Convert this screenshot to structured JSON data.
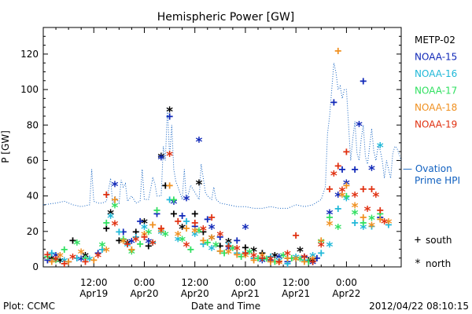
{
  "chart_data": {
    "type": "scatter",
    "title": "Hemispheric Power [GW]",
    "xlabel": "Date and Time",
    "ylabel": "P [GW]",
    "ylim": [
      0,
      135
    ],
    "yticks": [
      0,
      20,
      40,
      60,
      80,
      100,
      120
    ],
    "xlim_hours": [
      0,
      85
    ],
    "xticks": [
      {
        "hour": 12,
        "line1": "12:00",
        "line2": "Apr19"
      },
      {
        "hour": 24,
        "line1": "0:00",
        "line2": "Apr20"
      },
      {
        "hour": 36,
        "line1": "12:00",
        "line2": "Apr20"
      },
      {
        "hour": 48,
        "line1": "0:00",
        "line2": "Apr21"
      },
      {
        "hour": 60,
        "line1": "12:00",
        "line2": "Apr21"
      },
      {
        "hour": 72,
        "line1": "0:00",
        "line2": "Apr22"
      }
    ],
    "legend_placement": "right",
    "series": [
      {
        "name": "METP-02",
        "color": "#000000",
        "points": [
          [
            2,
            5
          ],
          [
            4,
            3
          ],
          [
            7,
            15
          ],
          [
            10,
            6
          ],
          [
            15,
            22
          ],
          [
            16,
            30
          ],
          [
            18,
            15
          ],
          [
            20,
            13
          ],
          [
            22,
            20
          ],
          [
            24,
            25
          ],
          [
            25,
            12
          ],
          [
            28,
            62
          ],
          [
            29,
            46
          ],
          [
            30,
            88
          ],
          [
            31,
            30
          ],
          [
            33,
            22
          ],
          [
            36,
            30
          ],
          [
            37,
            47
          ],
          [
            38,
            20
          ],
          [
            40,
            16
          ],
          [
            42,
            12
          ],
          [
            44,
            14
          ],
          [
            48,
            11
          ],
          [
            50,
            9
          ],
          [
            52,
            8
          ],
          [
            55,
            6
          ],
          [
            58,
            5
          ],
          [
            61,
            9
          ],
          [
            63,
            4
          ],
          [
            64,
            3
          ]
        ]
      },
      {
        "name": "NOAA-15",
        "color": "#1028b8",
        "points": [
          [
            1,
            4
          ],
          [
            3,
            6
          ],
          [
            6,
            3
          ],
          [
            9,
            4
          ],
          [
            13,
            8
          ],
          [
            17,
            46
          ],
          [
            19,
            20
          ],
          [
            21,
            14
          ],
          [
            23,
            26
          ],
          [
            25,
            14
          ],
          [
            27,
            30
          ],
          [
            28,
            61
          ],
          [
            30,
            85
          ],
          [
            31,
            36
          ],
          [
            33,
            29
          ],
          [
            34,
            38
          ],
          [
            36,
            23
          ],
          [
            37,
            71
          ],
          [
            39,
            27
          ],
          [
            40,
            22
          ],
          [
            42,
            17
          ],
          [
            44,
            10
          ],
          [
            46,
            15
          ],
          [
            48,
            22
          ],
          [
            50,
            5
          ],
          [
            52,
            3
          ],
          [
            54,
            4
          ],
          [
            56,
            5
          ],
          [
            58,
            3
          ],
          [
            60,
            4
          ],
          [
            62,
            6
          ],
          [
            64,
            2
          ],
          [
            65,
            5
          ],
          [
            68,
            30
          ],
          [
            69,
            93
          ],
          [
            70,
            40
          ],
          [
            71,
            55
          ],
          [
            72,
            47
          ],
          [
            74,
            55
          ],
          [
            75,
            80
          ],
          [
            76,
            105
          ],
          [
            78,
            55
          ],
          [
            80,
            28
          ]
        ]
      },
      {
        "name": "NOAA-16",
        "color": "#20b8d8",
        "points": [
          [
            2,
            8
          ],
          [
            5,
            3
          ],
          [
            8,
            5
          ],
          [
            11,
            4
          ],
          [
            14,
            10
          ],
          [
            16,
            28
          ],
          [
            18,
            20
          ],
          [
            20,
            12
          ],
          [
            22,
            17
          ],
          [
            24,
            22
          ],
          [
            26,
            14
          ],
          [
            28,
            19
          ],
          [
            30,
            38
          ],
          [
            32,
            15
          ],
          [
            34,
            26
          ],
          [
            36,
            18
          ],
          [
            38,
            13
          ],
          [
            40,
            10
          ],
          [
            42,
            9
          ],
          [
            44,
            12
          ],
          [
            46,
            8
          ],
          [
            48,
            7
          ],
          [
            50,
            5
          ],
          [
            52,
            4
          ],
          [
            54,
            6
          ],
          [
            56,
            3
          ],
          [
            58,
            2
          ],
          [
            60,
            5
          ],
          [
            62,
            4
          ],
          [
            64,
            6
          ],
          [
            66,
            8
          ],
          [
            68,
            12
          ],
          [
            70,
            33
          ],
          [
            72,
            38
          ],
          [
            74,
            25
          ],
          [
            76,
            22
          ],
          [
            78,
            23
          ],
          [
            80,
            68
          ],
          [
            82,
            24
          ]
        ]
      },
      {
        "name": "NOAA-17",
        "color": "#30e060",
        "points": [
          [
            1,
            6
          ],
          [
            3,
            3
          ],
          [
            5,
            10
          ],
          [
            8,
            13
          ],
          [
            10,
            5
          ],
          [
            14,
            12
          ],
          [
            15,
            25
          ],
          [
            17,
            34
          ],
          [
            19,
            16
          ],
          [
            21,
            8
          ],
          [
            23,
            13
          ],
          [
            25,
            19
          ],
          [
            27,
            32
          ],
          [
            29,
            18
          ],
          [
            31,
            38
          ],
          [
            33,
            15
          ],
          [
            35,
            10
          ],
          [
            37,
            20
          ],
          [
            39,
            14
          ],
          [
            41,
            12
          ],
          [
            43,
            8
          ],
          [
            45,
            10
          ],
          [
            47,
            6
          ],
          [
            49,
            8
          ],
          [
            51,
            5
          ],
          [
            53,
            4
          ],
          [
            55,
            3
          ],
          [
            57,
            6
          ],
          [
            59,
            5
          ],
          [
            61,
            4
          ],
          [
            63,
            3
          ],
          [
            66,
            14
          ],
          [
            68,
            28
          ],
          [
            70,
            22
          ],
          [
            72,
            40
          ],
          [
            74,
            30
          ],
          [
            76,
            25
          ],
          [
            78,
            27
          ],
          [
            80,
            30
          ]
        ]
      },
      {
        "name": "NOAA-18",
        "color": "#f09020",
        "points": [
          [
            2,
            3
          ],
          [
            4,
            6
          ],
          [
            6,
            3
          ],
          [
            9,
            8
          ],
          [
            12,
            4
          ],
          [
            15,
            9
          ],
          [
            17,
            38
          ],
          [
            19,
            14
          ],
          [
            21,
            10
          ],
          [
            24,
            18
          ],
          [
            26,
            24
          ],
          [
            28,
            20
          ],
          [
            30,
            46
          ],
          [
            32,
            18
          ],
          [
            34,
            22
          ],
          [
            36,
            20
          ],
          [
            38,
            15
          ],
          [
            40,
            16
          ],
          [
            42,
            9
          ],
          [
            44,
            8
          ],
          [
            46,
            7
          ],
          [
            48,
            6
          ],
          [
            50,
            4
          ],
          [
            52,
            6
          ],
          [
            54,
            3
          ],
          [
            56,
            2
          ],
          [
            58,
            5
          ],
          [
            60,
            4
          ],
          [
            62,
            3
          ],
          [
            64,
            4
          ],
          [
            66,
            15
          ],
          [
            68,
            24
          ],
          [
            70,
            122
          ],
          [
            71,
            40
          ],
          [
            72,
            46
          ],
          [
            74,
            34
          ],
          [
            76,
            28
          ],
          [
            78,
            23
          ],
          [
            80,
            27
          ],
          [
            82,
            25
          ]
        ]
      },
      {
        "name": "NOAA-19",
        "color": "#e03010",
        "points": [
          [
            1,
            7
          ],
          [
            3,
            4
          ],
          [
            5,
            2
          ],
          [
            7,
            5
          ],
          [
            10,
            3
          ],
          [
            13,
            6
          ],
          [
            15,
            41
          ],
          [
            17,
            24
          ],
          [
            20,
            13
          ],
          [
            22,
            15
          ],
          [
            24,
            17
          ],
          [
            26,
            13
          ],
          [
            28,
            22
          ],
          [
            30,
            63
          ],
          [
            32,
            26
          ],
          [
            34,
            12
          ],
          [
            36,
            25
          ],
          [
            38,
            21
          ],
          [
            40,
            28
          ],
          [
            42,
            18
          ],
          [
            44,
            12
          ],
          [
            46,
            10
          ],
          [
            48,
            8
          ],
          [
            50,
            6
          ],
          [
            52,
            5
          ],
          [
            54,
            4
          ],
          [
            56,
            3
          ],
          [
            58,
            7
          ],
          [
            60,
            18
          ],
          [
            62,
            5
          ],
          [
            64,
            3
          ],
          [
            66,
            12
          ],
          [
            68,
            44
          ],
          [
            69,
            52
          ],
          [
            70,
            57
          ],
          [
            71,
            43
          ],
          [
            72,
            65
          ],
          [
            74,
            40
          ],
          [
            76,
            44
          ],
          [
            77,
            32
          ],
          [
            78,
            44
          ],
          [
            79,
            40
          ],
          [
            80,
            32
          ],
          [
            81,
            25
          ]
        ]
      }
    ],
    "ovation": {
      "label_line1": "— Ovation",
      "label_line2": "Prime HPI",
      "color": "#1060c0",
      "points": [
        [
          0,
          35
        ],
        [
          3,
          36
        ],
        [
          5,
          37
        ],
        [
          7,
          35
        ],
        [
          9,
          34
        ],
        [
          11,
          35
        ],
        [
          11.5,
          55
        ],
        [
          12,
          37
        ],
        [
          13,
          36
        ],
        [
          14,
          36
        ],
        [
          15,
          37
        ],
        [
          16,
          50
        ],
        [
          16.5,
          35
        ],
        [
          17,
          40
        ],
        [
          18,
          36
        ],
        [
          18.5,
          49
        ],
        [
          19,
          45
        ],
        [
          19.5,
          47
        ],
        [
          20,
          37
        ],
        [
          21,
          40
        ],
        [
          22,
          36
        ],
        [
          23,
          37
        ],
        [
          23.5,
          55
        ],
        [
          24,
          38
        ],
        [
          25,
          38
        ],
        [
          26,
          50
        ],
        [
          26.5,
          47
        ],
        [
          27,
          40
        ],
        [
          28,
          40
        ],
        [
          28.5,
          68
        ],
        [
          29,
          60
        ],
        [
          29.5,
          90
        ],
        [
          30,
          62
        ],
        [
          30.5,
          80
        ],
        [
          31,
          55
        ],
        [
          31.5,
          48
        ],
        [
          32,
          45
        ],
        [
          33,
          38
        ],
        [
          33.5,
          55
        ],
        [
          34,
          37
        ],
        [
          35,
          46
        ],
        [
          36,
          42
        ],
        [
          37,
          38
        ],
        [
          37.5,
          58
        ],
        [
          38,
          50
        ],
        [
          38.5,
          42
        ],
        [
          39,
          40
        ],
        [
          40,
          38
        ],
        [
          40.5,
          45
        ],
        [
          41,
          38
        ],
        [
          42,
          36
        ],
        [
          44,
          35
        ],
        [
          46,
          34
        ],
        [
          48,
          34
        ],
        [
          50,
          33
        ],
        [
          52,
          33
        ],
        [
          54,
          34
        ],
        [
          56,
          33
        ],
        [
          58,
          33
        ],
        [
          59,
          34
        ],
        [
          60,
          35
        ],
        [
          62,
          34
        ],
        [
          64,
          35
        ],
        [
          66,
          38
        ],
        [
          67,
          45
        ],
        [
          67.5,
          75
        ],
        [
          68,
          85
        ],
        [
          68.5,
          100
        ],
        [
          69,
          115
        ],
        [
          69.5,
          110
        ],
        [
          70,
          100
        ],
        [
          70.5,
          102
        ],
        [
          71,
          95
        ],
        [
          71.5,
          100
        ],
        [
          72,
          100
        ],
        [
          72.5,
          80
        ],
        [
          73,
          60
        ],
        [
          73.5,
          72
        ],
        [
          74,
          82
        ],
        [
          74.5,
          64
        ],
        [
          75,
          60
        ],
        [
          75.5,
          72
        ],
        [
          76,
          80
        ],
        [
          76.5,
          62
        ],
        [
          77,
          58
        ],
        [
          77.5,
          68
        ],
        [
          78,
          78
        ],
        [
          78.5,
          65
        ],
        [
          79,
          60
        ],
        [
          79.5,
          68
        ],
        [
          80,
          66
        ],
        [
          80.5,
          60
        ],
        [
          81,
          50
        ],
        [
          81.5,
          60
        ],
        [
          82,
          55
        ],
        [
          82.5,
          50
        ],
        [
          83,
          64
        ],
        [
          83.5,
          68
        ],
        [
          84,
          67
        ],
        [
          85,
          60
        ]
      ]
    },
    "marker_legend": [
      {
        "symbol": "+",
        "label": "south"
      },
      {
        "symbol": "*",
        "label": "north"
      }
    ]
  },
  "footer": {
    "plot_credit": "Plot: CCMC",
    "timestamp": "2012/04/22 08:10:15"
  }
}
